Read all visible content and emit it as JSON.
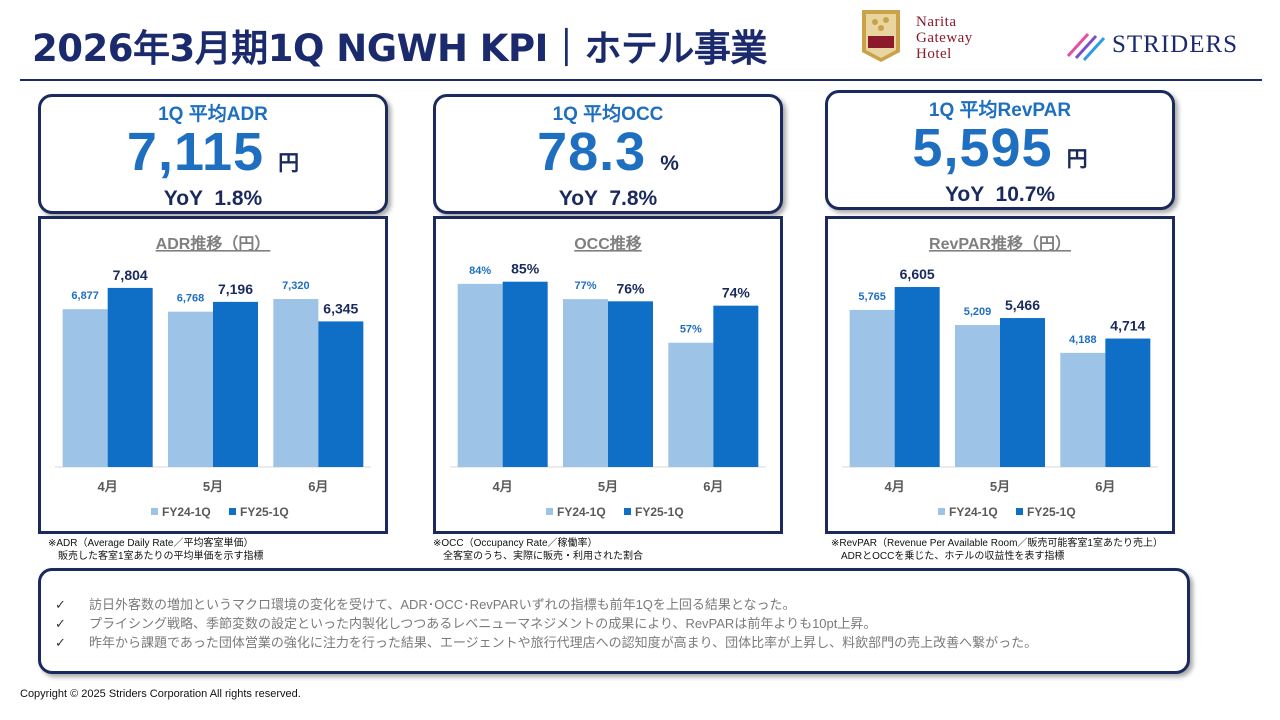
{
  "page": {
    "title": "2026年3月期1Q NGWH KPI｜ホテル事業",
    "copyright": "Copyright © 2025 Striders Corporation All rights reserved."
  },
  "logos": {
    "ngwh": {
      "line1": "Narita",
      "line2": "Gateway",
      "line3": "Hotel",
      "icon": "hotel-emblem-icon"
    },
    "striders": {
      "text": "STRIDERS",
      "icon": "striders-stripes-icon"
    }
  },
  "kpis": [
    {
      "label": "1Q 平均ADR",
      "value": "7,115",
      "unit": "円",
      "yoy": "YoY  1.8%"
    },
    {
      "label": "1Q 平均OCC",
      "value": "78.3",
      "unit": "%",
      "yoy": "YoY  7.8%"
    },
    {
      "label": "1Q 平均RevPAR",
      "value": "5,595",
      "unit": "円",
      "yoy": "YoY  10.7%"
    }
  ],
  "notes": [
    "※ADR（Average Daily Rate／平均客室単価）\n　販売した客室1室あたりの平均単価を示す指標",
    "※OCC（Occupancy Rate／稼働率）\n　全客室のうち、実際に販売・利用された割合",
    "※RevPAR（Revenue Per Available Room／販売可能客室1室あたり売上）\n　ADRとOCCを乗じた、ホテルの収益性を表す指標"
  ],
  "summary": {
    "check_mark": "✓",
    "items": [
      "訪日外客数の増加というマクロ環境の変化を受けて、ADR･OCC･RevPARいずれの指標も前年1Qを上回る結果となった。",
      "プライシング戦略、季節変数の設定といった内製化しつつあるレベニューマネジメントの成果により、RevPARは前年よりも10pt上昇。",
      "昨年から課題であった団体営業の強化に注力を行った結果、エージェントや旅行代理店への認知度が高まり、団体比率が上昇し、料飲部門の売上改善へ繋がった。"
    ]
  },
  "colors": {
    "fy24": "#9dc3e6",
    "fy25": "#0f6fc6",
    "navy": "#1a2a5c",
    "accent": "#1f6fc0"
  },
  "chart_data": [
    {
      "type": "bar",
      "title": "ADR推移（円）",
      "categories": [
        "4月",
        "5月",
        "6月"
      ],
      "series": [
        {
          "name": "FY24-1Q",
          "values": [
            6877,
            6768,
            7320
          ],
          "labels": [
            "6,877",
            "6,768",
            "7,320"
          ]
        },
        {
          "name": "FY25-1Q",
          "values": [
            7804,
            7196,
            6345
          ],
          "labels": [
            "7,804",
            "7,196",
            "6,345"
          ]
        }
      ],
      "ylim": [
        0,
        9500
      ],
      "legend": "bottom",
      "grid": false
    },
    {
      "type": "bar",
      "title": "OCC推移",
      "categories": [
        "4月",
        "5月",
        "6月"
      ],
      "series": [
        {
          "name": "FY24-1Q",
          "values": [
            84,
            77,
            57
          ],
          "labels": [
            "84%",
            "77%",
            "57%"
          ]
        },
        {
          "name": "FY25-1Q",
          "values": [
            85,
            76,
            74
          ],
          "labels": [
            "85%",
            "76%",
            "74%"
          ]
        }
      ],
      "ylim": [
        0,
        100
      ],
      "legend": "bottom",
      "grid": false
    },
    {
      "type": "bar",
      "title": "RevPAR推移（円）",
      "categories": [
        "4月",
        "5月",
        "6月"
      ],
      "series": [
        {
          "name": "FY24-1Q",
          "values": [
            5765,
            5209,
            4188
          ],
          "labels": [
            "5,765",
            "5,209",
            "4,188"
          ]
        },
        {
          "name": "FY25-1Q",
          "values": [
            6605,
            5466,
            4714
          ],
          "labels": [
            "6,605",
            "5,466",
            "4,714"
          ]
        }
      ],
      "ylim": [
        0,
        8000
      ],
      "legend": "bottom",
      "grid": false
    }
  ]
}
